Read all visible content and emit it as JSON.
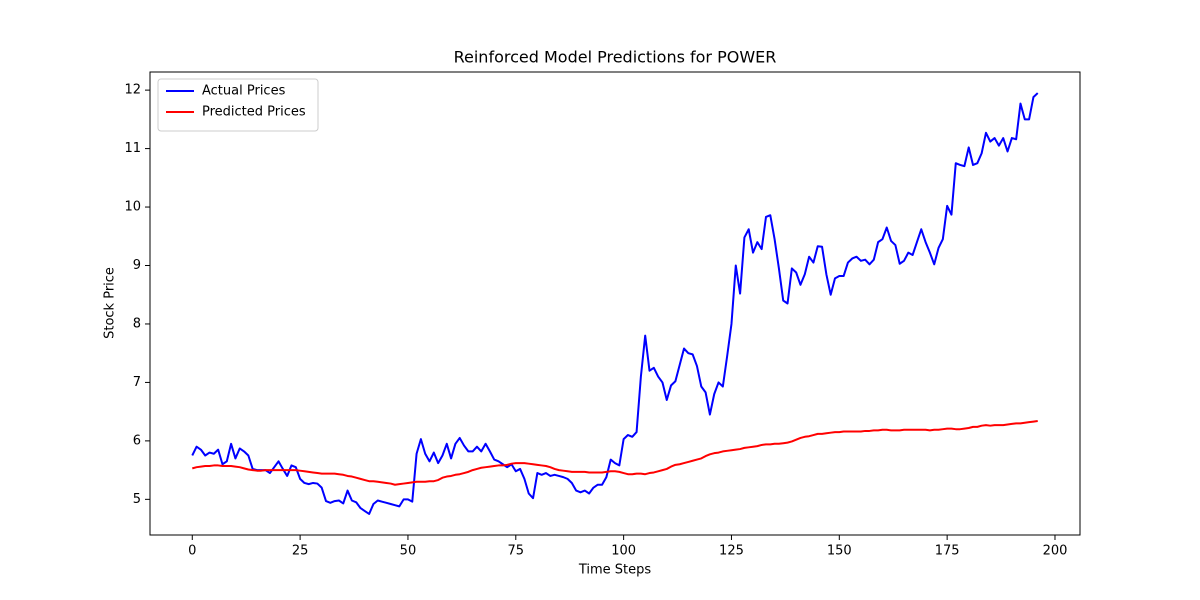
{
  "chart_data": {
    "type": "line",
    "title": "Reinforced Model Predictions for POWER",
    "x_label": "Time Steps",
    "y_label": "Stock Price",
    "x": [
      0,
      1,
      2,
      3,
      4,
      5,
      6,
      7,
      8,
      9,
      10,
      11,
      12,
      13,
      14,
      15,
      16,
      17,
      18,
      19,
      20,
      21,
      22,
      23,
      24,
      25,
      26,
      27,
      28,
      29,
      30,
      31,
      32,
      33,
      34,
      35,
      36,
      37,
      38,
      39,
      40,
      41,
      42,
      43,
      44,
      45,
      46,
      47,
      48,
      49,
      50,
      51,
      52,
      53,
      54,
      55,
      56,
      57,
      58,
      59,
      60,
      61,
      62,
      63,
      64,
      65,
      66,
      67,
      68,
      69,
      70,
      71,
      72,
      73,
      74,
      75,
      76,
      77,
      78,
      79,
      80,
      81,
      82,
      83,
      84,
      85,
      86,
      87,
      88,
      89,
      90,
      91,
      92,
      93,
      94,
      95,
      96,
      97,
      98,
      99,
      100,
      101,
      102,
      103,
      104,
      105,
      106,
      107,
      108,
      109,
      110,
      111,
      112,
      113,
      114,
      115,
      116,
      117,
      118,
      119,
      120,
      121,
      122,
      123,
      124,
      125,
      126,
      127,
      128,
      129,
      130,
      131,
      132,
      133,
      134,
      135,
      136,
      137,
      138,
      139,
      140,
      141,
      142,
      143,
      144,
      145,
      146,
      147,
      148,
      149,
      150,
      151,
      152,
      153,
      154,
      155,
      156,
      157,
      158,
      159,
      160,
      161,
      162,
      163,
      164,
      165,
      166,
      167,
      168,
      169,
      170,
      171,
      172,
      173,
      174,
      175,
      176,
      177,
      178,
      179,
      180,
      181,
      182,
      183,
      184,
      185,
      186,
      187,
      188,
      189,
      190,
      191,
      192,
      193,
      194,
      195,
      196
    ],
    "series": [
      {
        "name": "Actual Prices",
        "color": "#0000ff",
        "values": [
          5.75,
          5.9,
          5.85,
          5.75,
          5.8,
          5.78,
          5.85,
          5.6,
          5.65,
          5.95,
          5.7,
          5.87,
          5.82,
          5.75,
          5.52,
          5.5,
          5.5,
          5.5,
          5.45,
          5.55,
          5.65,
          5.52,
          5.4,
          5.58,
          5.55,
          5.35,
          5.28,
          5.26,
          5.28,
          5.27,
          5.2,
          4.97,
          4.94,
          4.97,
          4.98,
          4.93,
          5.15,
          4.98,
          4.95,
          4.85,
          4.8,
          4.75,
          4.92,
          4.98,
          4.96,
          4.94,
          4.92,
          4.9,
          4.88,
          5.0,
          5.0,
          4.96,
          5.78,
          6.03,
          5.78,
          5.65,
          5.8,
          5.62,
          5.75,
          5.95,
          5.7,
          5.95,
          6.05,
          5.92,
          5.82,
          5.82,
          5.9,
          5.82,
          5.95,
          5.82,
          5.68,
          5.65,
          5.6,
          5.55,
          5.6,
          5.48,
          5.52,
          5.35,
          5.1,
          5.02,
          5.45,
          5.42,
          5.45,
          5.4,
          5.42,
          5.4,
          5.38,
          5.35,
          5.28,
          5.15,
          5.12,
          5.15,
          5.1,
          5.2,
          5.25,
          5.25,
          5.38,
          5.68,
          5.62,
          5.58,
          6.03,
          6.1,
          6.07,
          6.15,
          7.1,
          7.8,
          7.2,
          7.25,
          7.1,
          7.0,
          6.7,
          6.95,
          7.02,
          7.3,
          7.58,
          7.5,
          7.48,
          7.28,
          6.93,
          6.83,
          6.45,
          6.8,
          7.0,
          6.93,
          7.45,
          8.0,
          9.0,
          8.52,
          9.48,
          9.62,
          9.22,
          9.4,
          9.28,
          9.83,
          9.86,
          9.45,
          8.95,
          8.4,
          8.35,
          8.95,
          8.88,
          8.67,
          8.85,
          9.15,
          9.05,
          9.33,
          9.32,
          8.85,
          8.5,
          8.78,
          8.82,
          8.82,
          9.05,
          9.12,
          9.15,
          9.08,
          9.1,
          9.02,
          9.1,
          9.4,
          9.45,
          9.65,
          9.42,
          9.35,
          9.03,
          9.08,
          9.22,
          9.18,
          9.4,
          9.62,
          9.4,
          9.22,
          9.02,
          9.3,
          9.45,
          10.02,
          9.87,
          10.75,
          10.72,
          10.7,
          11.02,
          10.72,
          10.75,
          10.92,
          11.27,
          11.12,
          11.18,
          11.05,
          11.18,
          10.95,
          11.18,
          11.16,
          11.77,
          11.5,
          11.5,
          11.88,
          11.95
        ]
      },
      {
        "name": "Predicted Prices",
        "color": "#ff0000",
        "values": [
          5.53,
          5.55,
          5.56,
          5.57,
          5.57,
          5.58,
          5.58,
          5.57,
          5.57,
          5.57,
          5.56,
          5.55,
          5.53,
          5.51,
          5.5,
          5.49,
          5.49,
          5.5,
          5.5,
          5.5,
          5.5,
          5.5,
          5.5,
          5.5,
          5.5,
          5.49,
          5.48,
          5.47,
          5.46,
          5.45,
          5.44,
          5.44,
          5.44,
          5.44,
          5.43,
          5.42,
          5.4,
          5.39,
          5.37,
          5.35,
          5.33,
          5.31,
          5.31,
          5.3,
          5.29,
          5.28,
          5.27,
          5.25,
          5.26,
          5.27,
          5.28,
          5.29,
          5.3,
          5.3,
          5.3,
          5.31,
          5.31,
          5.33,
          5.37,
          5.39,
          5.4,
          5.42,
          5.43,
          5.45,
          5.47,
          5.5,
          5.52,
          5.54,
          5.55,
          5.56,
          5.57,
          5.58,
          5.58,
          5.59,
          5.61,
          5.62,
          5.62,
          5.62,
          5.61,
          5.6,
          5.59,
          5.58,
          5.57,
          5.55,
          5.52,
          5.5,
          5.49,
          5.48,
          5.47,
          5.47,
          5.47,
          5.47,
          5.46,
          5.46,
          5.46,
          5.46,
          5.47,
          5.48,
          5.48,
          5.47,
          5.45,
          5.43,
          5.43,
          5.44,
          5.44,
          5.43,
          5.45,
          5.46,
          5.48,
          5.5,
          5.52,
          5.56,
          5.59,
          5.6,
          5.62,
          5.64,
          5.66,
          5.68,
          5.7,
          5.74,
          5.77,
          5.79,
          5.8,
          5.82,
          5.83,
          5.84,
          5.85,
          5.86,
          5.88,
          5.89,
          5.9,
          5.91,
          5.93,
          5.94,
          5.94,
          5.95,
          5.95,
          5.96,
          5.97,
          5.99,
          6.02,
          6.05,
          6.07,
          6.08,
          6.1,
          6.12,
          6.12,
          6.13,
          6.14,
          6.15,
          6.15,
          6.16,
          6.16,
          6.16,
          6.16,
          6.16,
          6.17,
          6.17,
          6.18,
          6.18,
          6.19,
          6.19,
          6.18,
          6.18,
          6.18,
          6.19,
          6.19,
          6.19,
          6.19,
          6.19,
          6.19,
          6.18,
          6.19,
          6.19,
          6.2,
          6.21,
          6.21,
          6.2,
          6.2,
          6.21,
          6.22,
          6.24,
          6.24,
          6.26,
          6.27,
          6.26,
          6.27,
          6.27,
          6.27,
          6.28,
          6.29,
          6.3,
          6.3,
          6.31,
          6.32,
          6.33,
          6.34
        ]
      }
    ],
    "xlim": [
      -9.8,
      205.8
    ],
    "ylim": [
      4.39,
      12.31
    ],
    "xticks": [
      0,
      25,
      50,
      75,
      100,
      125,
      150,
      175,
      200
    ],
    "yticks": [
      5,
      6,
      7,
      8,
      9,
      10,
      11,
      12
    ],
    "grid": false,
    "legend": "upper left"
  }
}
